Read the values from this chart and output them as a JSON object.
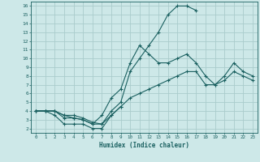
{
  "title": "",
  "xlabel": "Humidex (Indice chaleur)",
  "bg_color": "#cde8e8",
  "grid_color": "#aacccc",
  "line_color": "#1a6060",
  "xlim": [
    -0.5,
    23.5
  ],
  "ylim": [
    1.5,
    16.5
  ],
  "xticks": [
    0,
    1,
    2,
    3,
    4,
    5,
    6,
    7,
    8,
    9,
    10,
    11,
    12,
    13,
    14,
    15,
    16,
    17,
    18,
    19,
    20,
    21,
    22,
    23
  ],
  "yticks": [
    2,
    3,
    4,
    5,
    6,
    7,
    8,
    9,
    10,
    11,
    12,
    13,
    14,
    15,
    16
  ],
  "series": [
    {
      "x": [
        0,
        1,
        2,
        3,
        4,
        5,
        6,
        7,
        8,
        9,
        10,
        11,
        12,
        13,
        14,
        15,
        16,
        17
      ],
      "y": [
        4,
        4,
        4,
        3.5,
        3.5,
        3.2,
        2.7,
        2.5,
        4,
        5,
        8.5,
        10,
        11.5,
        13,
        15,
        16,
        16,
        15.5
      ]
    },
    {
      "x": [
        0,
        1,
        2,
        3,
        4,
        5,
        6,
        7,
        8,
        9,
        10,
        11,
        12,
        13,
        14,
        15,
        16,
        17,
        18,
        19,
        20,
        21,
        22,
        23
      ],
      "y": [
        4,
        4,
        4,
        3.5,
        3.2,
        3,
        2.5,
        3.5,
        5.5,
        6.5,
        9.5,
        11.5,
        10.5,
        9.5,
        9.5,
        10,
        10.5,
        9.5,
        8,
        7,
        8,
        9.5,
        8.5,
        8
      ]
    },
    {
      "x": [
        0,
        1,
        2,
        3,
        4,
        5,
        6,
        7,
        8,
        9,
        10,
        11,
        12,
        13,
        14,
        15,
        16,
        17,
        18,
        19,
        20,
        21,
        22,
        23
      ],
      "y": [
        4,
        4,
        4,
        3.2,
        3.2,
        3,
        2.5,
        2.5,
        3.5,
        4.5,
        5.5,
        6,
        6.5,
        7,
        7.5,
        8,
        8.5,
        8.5,
        7,
        7,
        7.5,
        8.5,
        8,
        7.5
      ]
    },
    {
      "x": [
        0,
        1,
        2,
        3,
        4,
        5,
        6,
        7,
        8,
        9
      ],
      "y": [
        4,
        4,
        3.5,
        2.5,
        2.5,
        2.5,
        2,
        2,
        3.5,
        4.5
      ]
    }
  ]
}
